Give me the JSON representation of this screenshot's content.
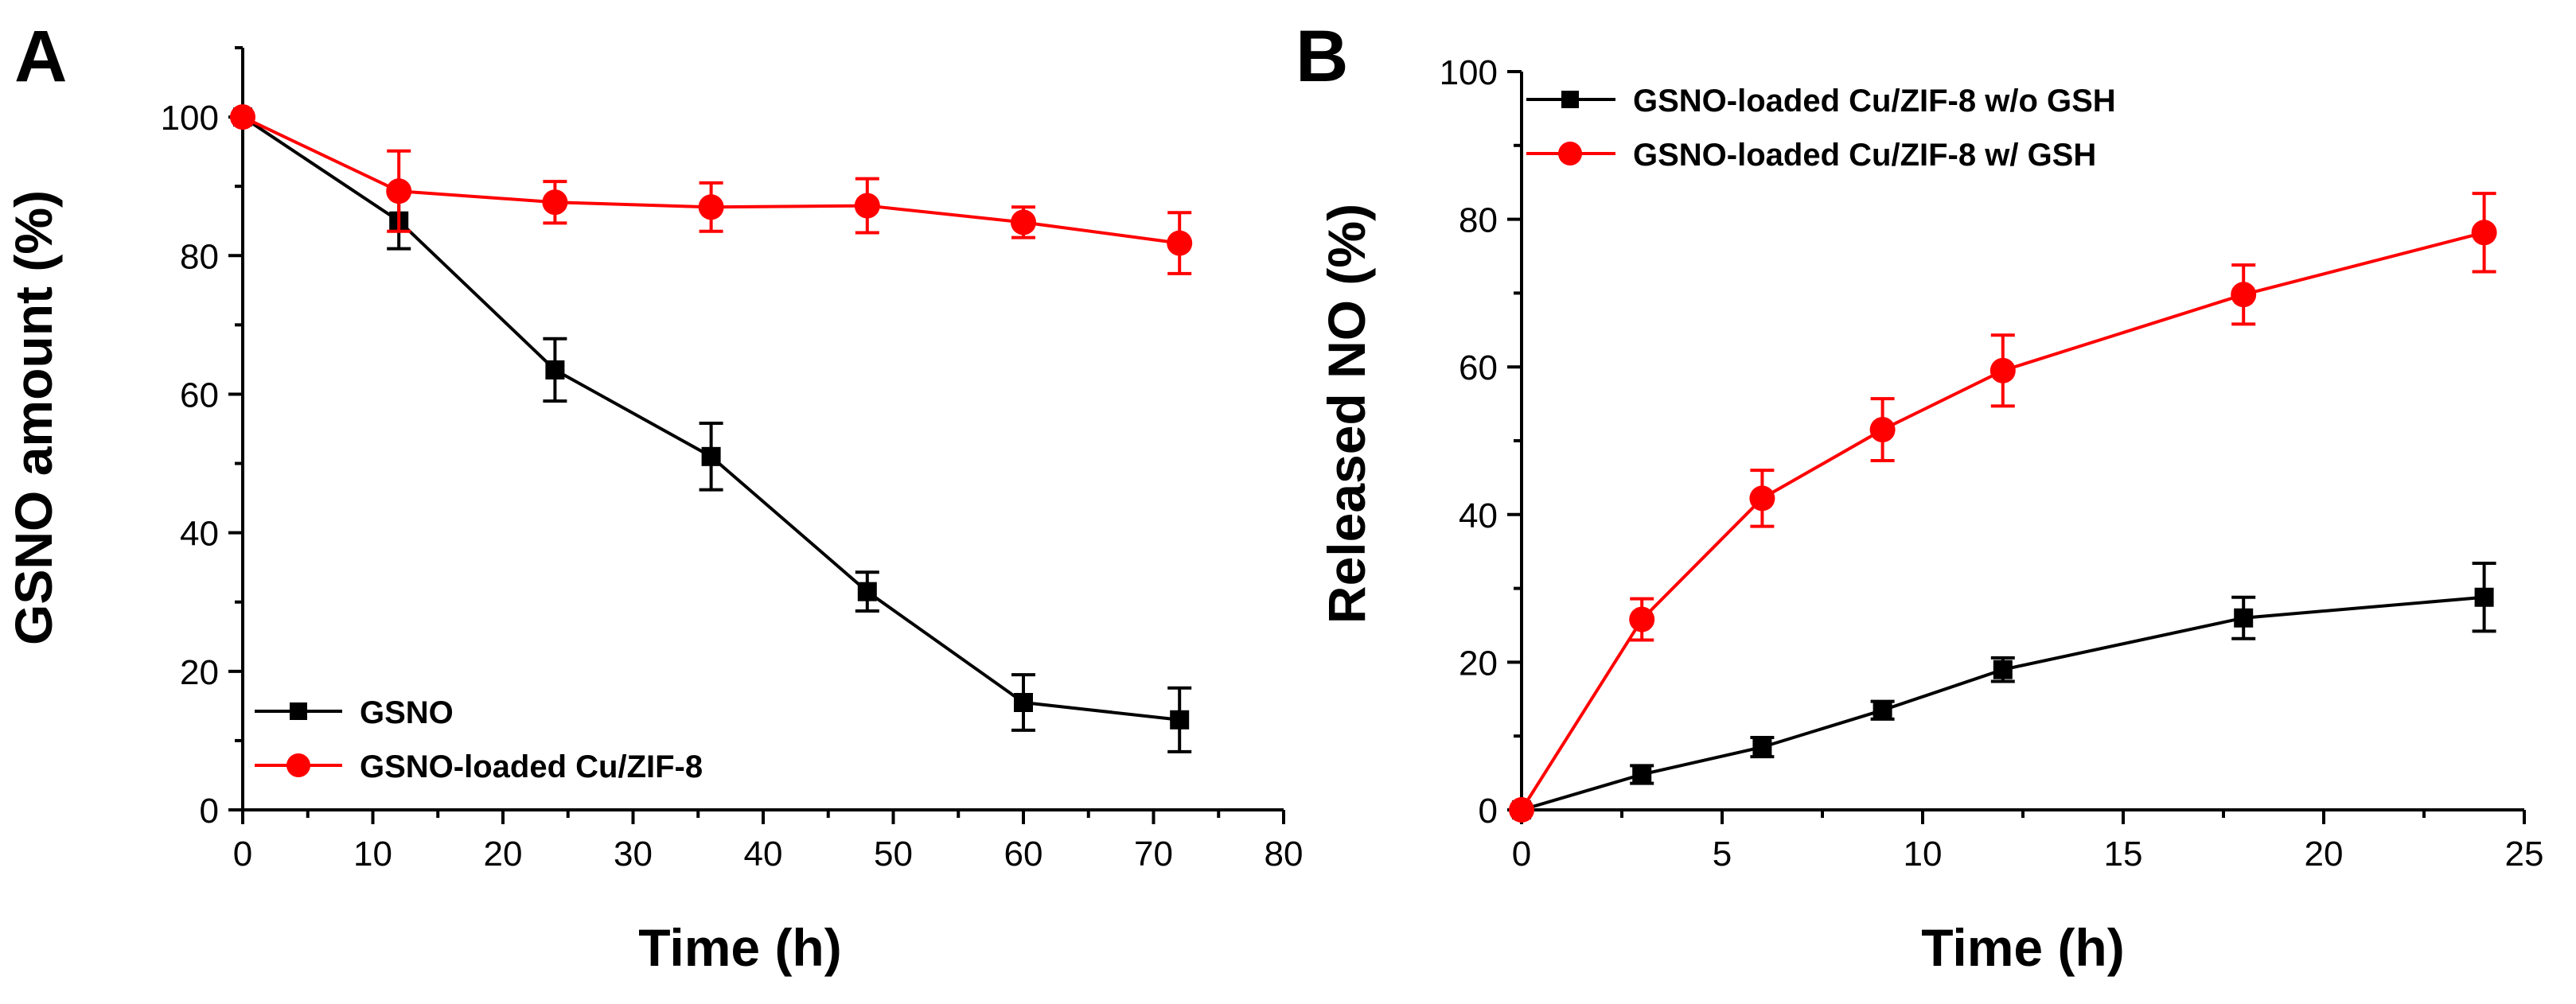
{
  "colors": {
    "black_series": "#000000",
    "red_series": "#ff0000"
  },
  "chart_data": [
    {
      "type": "line",
      "panel_label": "A",
      "title": "",
      "xlabel": "Time (h)",
      "ylabel": "GSNO amount (%)",
      "xlim": [
        0,
        80
      ],
      "ylim": [
        0,
        110
      ],
      "xticks": [
        0,
        10,
        20,
        30,
        40,
        50,
        60,
        70,
        80
      ],
      "yticks": [
        0,
        20,
        40,
        60,
        80,
        100
      ],
      "legend_position": "bottom-left",
      "series": [
        {
          "name": "GSNO",
          "marker": "square",
          "color": "#000000",
          "x": [
            0,
            12,
            24,
            36,
            48,
            60,
            72
          ],
          "y": [
            100,
            85,
            63.5,
            51,
            31.5,
            15.5,
            13
          ],
          "err": [
            0,
            4,
            4.5,
            4.8,
            2.8,
            4,
            4.6
          ]
        },
        {
          "name": "GSNO-loaded Cu/ZIF-8",
          "marker": "circle",
          "color": "#ff0000",
          "x": [
            0,
            12,
            24,
            36,
            48,
            60,
            72
          ],
          "y": [
            100,
            89.3,
            87.7,
            87,
            87.2,
            84.8,
            81.8
          ],
          "err": [
            0,
            5.8,
            3,
            3.5,
            3.9,
            2.2,
            4.4
          ]
        }
      ]
    },
    {
      "type": "line",
      "panel_label": "B",
      "title": "",
      "xlabel": "Time (h)",
      "ylabel": "Released NO (%)",
      "xlim": [
        0,
        25
      ],
      "ylim": [
        0,
        100
      ],
      "xticks": [
        0,
        5,
        10,
        15,
        20,
        25
      ],
      "yticks": [
        0,
        20,
        40,
        60,
        80,
        100
      ],
      "legend_position": "top-left",
      "series": [
        {
          "name": "GSNO-loaded Cu/ZIF-8 w/o GSH",
          "marker": "square",
          "color": "#000000",
          "x": [
            0,
            3,
            6,
            9,
            12,
            18,
            24
          ],
          "y": [
            0,
            4.8,
            8.5,
            13.5,
            19,
            26,
            28.8
          ],
          "err": [
            0,
            1.2,
            1.3,
            1.2,
            1.6,
            2.8,
            4.6
          ]
        },
        {
          "name": "GSNO-loaded Cu/ZIF-8 w/ GSH",
          "marker": "circle",
          "color": "#ff0000",
          "x": [
            0,
            3,
            6,
            9,
            12,
            18,
            24
          ],
          "y": [
            0,
            25.8,
            42.2,
            51.5,
            59.5,
            69.8,
            78.2
          ],
          "err": [
            0,
            2.8,
            3.8,
            4.2,
            4.8,
            4,
            5.3
          ]
        }
      ]
    }
  ]
}
